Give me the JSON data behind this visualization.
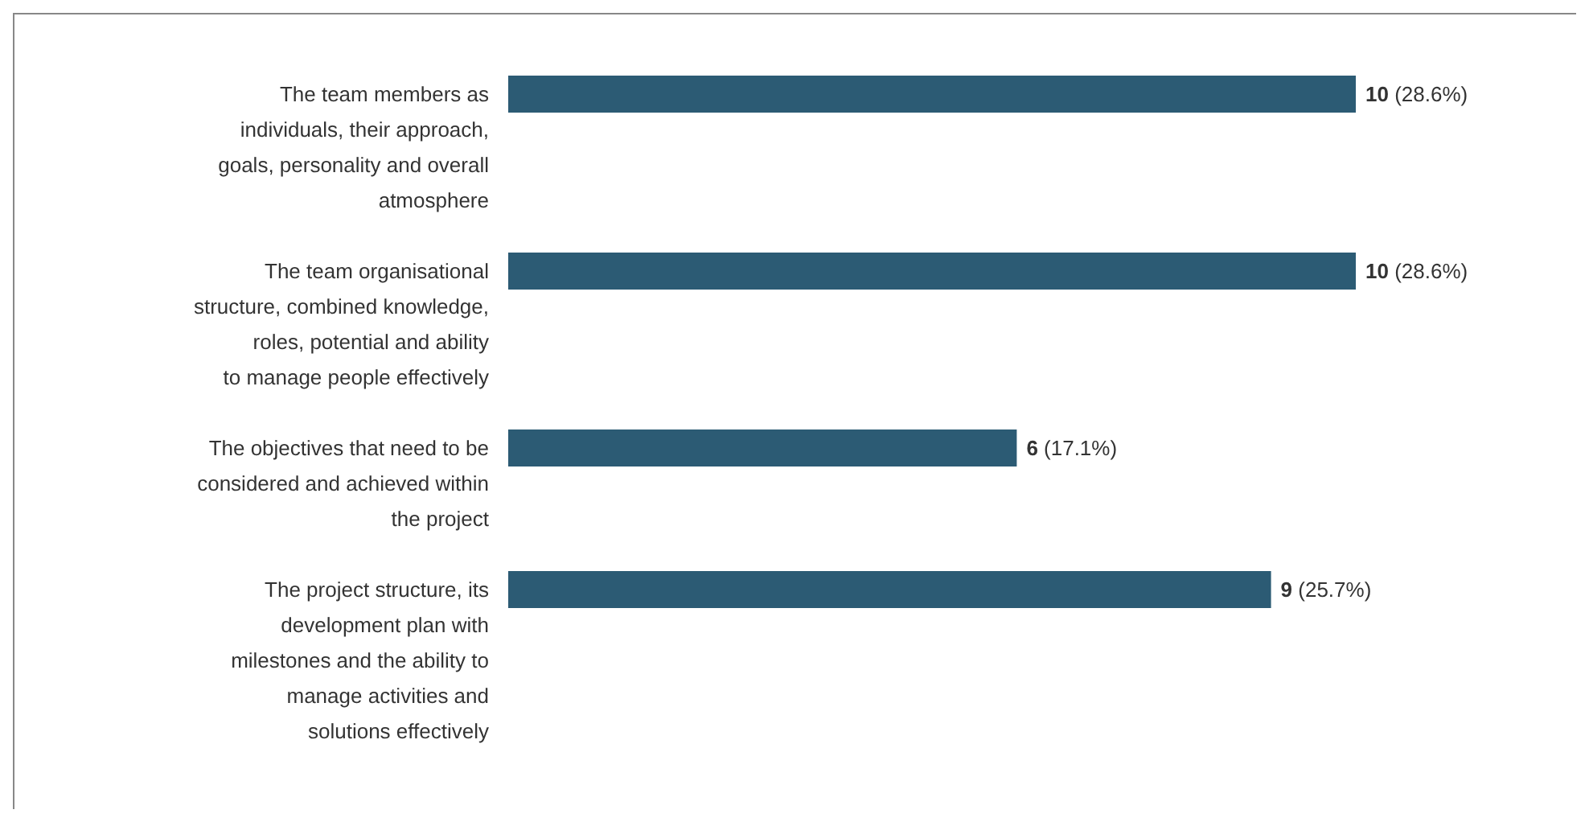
{
  "chart_data": {
    "type": "bar",
    "orientation": "horizontal",
    "categories": [
      "The team members as\nindividuals, their approach,\ngoals, personality and overall\natmosphere",
      "The team organisational\nstructure, combined knowledge,\nroles, potential and ability\nto manage people effectively",
      "The objectives that need to be\nconsidered and achieved within\nthe project",
      "The project structure, its\ndevelopment plan with\nmilestones and the ability to\nmanage activities and\nsolutions effectively"
    ],
    "values": [
      10,
      10,
      6,
      9
    ],
    "value_labels": [
      "10 (28.6%)",
      "10 (28.6%)",
      "6 (17.1%)",
      "9 (25.7%)"
    ],
    "color": "#2c5b74",
    "tick_labels": "y"
  }
}
